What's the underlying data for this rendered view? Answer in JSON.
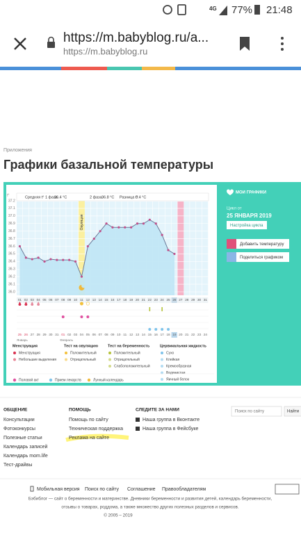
{
  "status_bar": {
    "network": "4G",
    "battery": "77%",
    "time": "21:48"
  },
  "browser": {
    "url": "https://m.babyblog.ru/a...",
    "domain": "https://m.babyblog.ru"
  },
  "page": {
    "breadcrumb": "Приложения",
    "title": "Графики базальной температуры"
  },
  "chart_header": {
    "phase1_label": "Средняя t° 1 фаза",
    "phase1_value": "36.4 °C",
    "phase2_label": "2 фаза",
    "phase2_value": "36.8 °C",
    "diff_label": "Разница t°",
    "diff_value": "0.4 °C",
    "axis_unit": "t°",
    "ovulation": "Овуляция"
  },
  "chart_data": {
    "type": "line",
    "line_color": "#6b7a99",
    "marker_color": "#c0508a",
    "area_color": "#bfe6f5",
    "categories": [
      "01",
      "02",
      "03",
      "04",
      "05",
      "06",
      "07",
      "08",
      "09",
      "10",
      "11",
      "12",
      "13",
      "14",
      "15",
      "16",
      "17",
      "18",
      "19",
      "20",
      "21",
      "22",
      "23",
      "24",
      "25",
      "26",
      "27",
      "28",
      "29",
      "30",
      "31"
    ],
    "values": [
      36.6,
      36.45,
      36.43,
      36.45,
      36.4,
      36.43,
      36.42,
      36.42,
      36.42,
      36.4,
      36.2,
      36.6,
      36.7,
      36.8,
      36.9,
      36.85,
      36.85,
      36.85,
      36.85,
      36.9,
      36.9,
      36.95,
      36.9,
      36.75,
      36.55,
      36.5,
      null,
      null,
      null,
      null,
      null
    ],
    "ylim": [
      36,
      37.2
    ],
    "yticks": [
      {
        "value": 37.2,
        "label": "37.2"
      },
      37.1,
      {
        "value": 37,
        "label": "37.0"
      },
      36.9,
      36.8,
      36.7,
      36.6,
      36.5,
      36.4,
      36.3,
      36.2,
      36.1,
      {
        "value": 36,
        "label": "36.0"
      }
    ],
    "grid": true,
    "dates": [
      "25",
      "26",
      "27",
      "28",
      "29",
      "30",
      "31",
      "01",
      "02",
      "03",
      "04",
      "05",
      "06",
      "07",
      "08",
      "09",
      "10",
      "11",
      "12",
      "13",
      "14",
      "15",
      "16",
      "17",
      "18",
      "19",
      "20",
      "21",
      "22",
      "23",
      "24"
    ],
    "months": [
      "Январь",
      "Февраль"
    ]
  },
  "sidebar": {
    "title": "МОИ ГРАФИКИ",
    "cycle_label": "Цикл от",
    "cycle_date": "25 ЯНВАРЯ 2019",
    "settings": "Настройка цикла",
    "add": "Добавить температуру",
    "share": "Поделиться графиком"
  },
  "legend": {
    "groups": [
      {
        "title": "Менструация",
        "items": [
          "Менструация",
          "Небольшие выделения"
        ]
      },
      {
        "title": "Тест на овуляцию",
        "items": [
          "Положительный",
          "Отрицательный"
        ]
      },
      {
        "title": "Тест на беременность",
        "items": [
          "Положительный",
          "Отрицательный",
          "Слабоположительный"
        ]
      },
      {
        "title": "Цервикальная жидкость",
        "items": [
          "Сухо",
          "Клейкая",
          "Кремообразная",
          "Водянистая",
          "Яичный белок"
        ]
      }
    ],
    "extra": [
      "Половой акт",
      "Прием лекарств",
      "Лунный календарь"
    ]
  },
  "footer": {
    "columns": [
      {
        "title": "ОБЩЕНИЕ",
        "links": [
          "Консультации",
          "Фотоконкурсы",
          "Полезные статьи",
          "Календарь записей",
          "Календарь mom.life",
          "Тест-драйвы"
        ]
      },
      {
        "title": "ПОМОЩЬ",
        "links": [
          "Помощь по сайту",
          "Техническая поддержка",
          "Реклама на сайте"
        ]
      },
      {
        "title": "СЛЕДИТЕ ЗА НАМИ",
        "links": [
          "Наша группа в Вконтакте",
          "Наша группа в Фейсбуке"
        ]
      }
    ],
    "search_placeholder": "Поиск по сайту",
    "search_button": "Найти",
    "bottom_links": [
      "Мобильная версия",
      "Поиск по сайту",
      "Соглашение",
      "Правообладателям"
    ],
    "description": [
      "Бэбиблог — сайт о беременности и материнстве. Дневники беременности и развития детей, календарь беременности,",
      "отзывы о товарах, роддома, а также множество других полезных разделов и сервисов."
    ],
    "copyright": "© 2005 – 2019"
  }
}
